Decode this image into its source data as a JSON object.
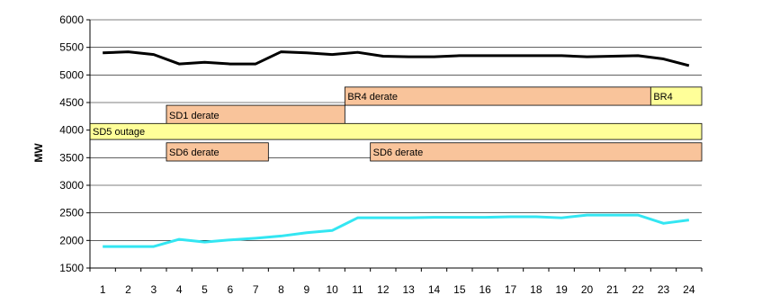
{
  "chart_data": {
    "type": "line",
    "title": "",
    "xlabel": "",
    "ylabel": "MW",
    "x": [
      1,
      2,
      3,
      4,
      5,
      6,
      7,
      8,
      9,
      10,
      11,
      12,
      13,
      14,
      15,
      16,
      17,
      18,
      19,
      20,
      21,
      22,
      23,
      24
    ],
    "ylim": [
      1500,
      6000
    ],
    "yticks": [
      1500,
      2000,
      2500,
      3000,
      3500,
      4000,
      4500,
      5000,
      5500,
      6000
    ],
    "grid": true,
    "series": [
      {
        "color": "#000000",
        "values": [
          5400,
          5420,
          5370,
          5200,
          5230,
          5200,
          5200,
          5420,
          5400,
          5370,
          5410,
          5340,
          5330,
          5330,
          5350,
          5350,
          5350,
          5350,
          5350,
          5330,
          5340,
          5350,
          5290,
          5170
        ]
      },
      {
        "color": "#33e6f2",
        "values": [
          1890,
          1890,
          1890,
          2020,
          1970,
          2010,
          2040,
          2080,
          2140,
          2180,
          2410,
          2410,
          2410,
          2420,
          2420,
          2420,
          2430,
          2430,
          2410,
          2460,
          2460,
          2460,
          2310,
          2370
        ]
      }
    ],
    "events": [
      {
        "label": "BR4 derate",
        "x_start": 10.5,
        "x_end": 22.5,
        "y_low": 4450,
        "y_high": 4780,
        "color": "#f9c49b"
      },
      {
        "label": "BR4",
        "x_start": 22.5,
        "x_end": 24.5,
        "y_low": 4450,
        "y_high": 4780,
        "color": "#ffff99"
      },
      {
        "label": "SD1 derate",
        "x_start": 3.5,
        "x_end": 10.5,
        "y_low": 4100,
        "y_high": 4450,
        "color": "#f9c49b"
      },
      {
        "label": "SD5 outage",
        "x_start": 0.5,
        "x_end": 24.5,
        "y_low": 3830,
        "y_high": 4120,
        "color": "#ffff99"
      },
      {
        "label": "SD6 derate",
        "x_start": 3.5,
        "x_end": 7.5,
        "y_low": 3440,
        "y_high": 3770,
        "color": "#f9c49b"
      },
      {
        "label": "SD6 derate",
        "x_start": 11.5,
        "x_end": 24.5,
        "y_low": 3440,
        "y_high": 3770,
        "color": "#f9c49b"
      }
    ]
  }
}
